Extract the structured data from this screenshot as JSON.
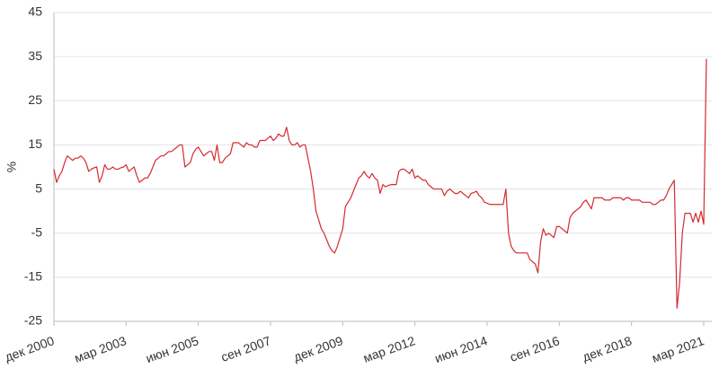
{
  "chart_data": {
    "type": "line",
    "y_label": "%",
    "color": "#d42a2f",
    "grid": true,
    "ylim": [
      -25,
      45
    ],
    "yticks": [
      -25,
      -15,
      -5,
      5,
      15,
      25,
      35,
      45
    ],
    "categories": [
      "дек 2000",
      null,
      null,
      null,
      null,
      null,
      null,
      null,
      null,
      null,
      null,
      null,
      null,
      null,
      null,
      null,
      null,
      null,
      null,
      null,
      null,
      null,
      null,
      null,
      null,
      null,
      null,
      "мар 2003",
      null,
      null,
      null,
      null,
      null,
      null,
      null,
      null,
      null,
      null,
      null,
      null,
      null,
      null,
      null,
      null,
      null,
      null,
      null,
      null,
      null,
      null,
      null,
      null,
      null,
      null,
      "июн 2005",
      null,
      null,
      null,
      null,
      null,
      null,
      null,
      null,
      null,
      null,
      null,
      null,
      null,
      null,
      null,
      null,
      null,
      null,
      null,
      null,
      null,
      null,
      null,
      null,
      null,
      null,
      "сен 2007",
      null,
      null,
      null,
      null,
      null,
      null,
      null,
      null,
      null,
      null,
      null,
      null,
      null,
      null,
      null,
      null,
      null,
      null,
      null,
      null,
      null,
      null,
      null,
      null,
      null,
      null,
      "дек 2009",
      null,
      null,
      null,
      null,
      null,
      null,
      null,
      null,
      null,
      null,
      null,
      null,
      null,
      null,
      null,
      null,
      null,
      null,
      null,
      null,
      null,
      null,
      null,
      null,
      null,
      null,
      "мар 2012",
      null,
      null,
      null,
      null,
      null,
      null,
      null,
      null,
      null,
      null,
      null,
      null,
      null,
      null,
      null,
      null,
      null,
      null,
      null,
      null,
      null,
      null,
      null,
      null,
      null,
      null,
      "июн 2014",
      null,
      null,
      null,
      null,
      null,
      null,
      null,
      null,
      null,
      null,
      null,
      null,
      null,
      null,
      null,
      null,
      null,
      null,
      null,
      null,
      null,
      null,
      null,
      null,
      null,
      null,
      "сен 2016",
      null,
      null,
      null,
      null,
      null,
      null,
      null,
      null,
      null,
      null,
      null,
      null,
      null,
      null,
      null,
      null,
      null,
      null,
      null,
      null,
      null,
      null,
      null,
      null,
      null,
      null,
      "дек 2018",
      null,
      null,
      null,
      null,
      null,
      null,
      null,
      null,
      null,
      null,
      null,
      null,
      null,
      null,
      null,
      null,
      null,
      null,
      null,
      null,
      null,
      null,
      null,
      null,
      null,
      null,
      "мар 2021",
      null
    ],
    "values": [
      9.5,
      6.5,
      8,
      9,
      11,
      12.5,
      12,
      11.5,
      12,
      12,
      12.5,
      12,
      11,
      9,
      9.5,
      9.8,
      10,
      6.5,
      8,
      10.5,
      9.5,
      9.5,
      10,
      9.5,
      9.5,
      9.8,
      10,
      10.5,
      9,
      9.5,
      10,
      8,
      6.5,
      7,
      7.5,
      7.5,
      8.5,
      10,
      11.5,
      12,
      12.5,
      12.5,
      13,
      13.5,
      13.5,
      14,
      14.5,
      15,
      15,
      10,
      10.5,
      11,
      13,
      14,
      14.5,
      13.5,
      12.5,
      13,
      13.5,
      13.5,
      11.5,
      15,
      11,
      11,
      12,
      12.5,
      13,
      15.5,
      15.5,
      15.5,
      15,
      14.5,
      15.5,
      15,
      15,
      14.5,
      14.5,
      16,
      16,
      16,
      16.5,
      17,
      16,
      16.5,
      17.5,
      17,
      17,
      19,
      16,
      15,
      15,
      15.5,
      14.5,
      15,
      15,
      12,
      9,
      5,
      0,
      -2,
      -4,
      -5,
      -6.5,
      -8,
      -9,
      -9.5,
      -8,
      -6,
      -4,
      1,
      2,
      3,
      4.5,
      6,
      7.5,
      8,
      9,
      8,
      7.5,
      8.5,
      7.5,
      7,
      4,
      6,
      5.5,
      5.8,
      6,
      6,
      6,
      9,
      9.5,
      9.5,
      9,
      8.5,
      9.5,
      7.5,
      8,
      7.5,
      7,
      7,
      6,
      5.5,
      5,
      5,
      5,
      5,
      3.5,
      4.5,
      5,
      4.5,
      4,
      4,
      4.5,
      4,
      3.5,
      3,
      4,
      4.2,
      4.5,
      3.5,
      3,
      2,
      1.8,
      1.5,
      1.5,
      1.5,
      1.5,
      1.5,
      1.5,
      5,
      -5,
      -8,
      -9,
      -9.5,
      -9.5,
      -9.5,
      -9.5,
      -9.5,
      -11,
      -11.5,
      -12,
      -14,
      -7,
      -4,
      -5.5,
      -5,
      -5.5,
      -6,
      -3.5,
      -3.5,
      -4,
      -4.5,
      -5,
      -1.5,
      -0.5,
      0,
      0.5,
      1,
      2,
      2.5,
      1.5,
      0.5,
      3,
      3,
      3,
      3,
      2.5,
      2.5,
      2.5,
      3,
      3,
      3,
      3,
      2.5,
      3,
      3,
      2.5,
      2.5,
      2.5,
      2.5,
      2,
      2,
      2,
      2,
      1.5,
      1.5,
      2,
      2.5,
      2.5,
      3.5,
      5,
      6,
      7,
      -22,
      -16,
      -5,
      -0.5,
      -0.5,
      -0.5,
      -2.5,
      -0.5,
      -2.5,
      0,
      -3,
      34.5
    ]
  }
}
